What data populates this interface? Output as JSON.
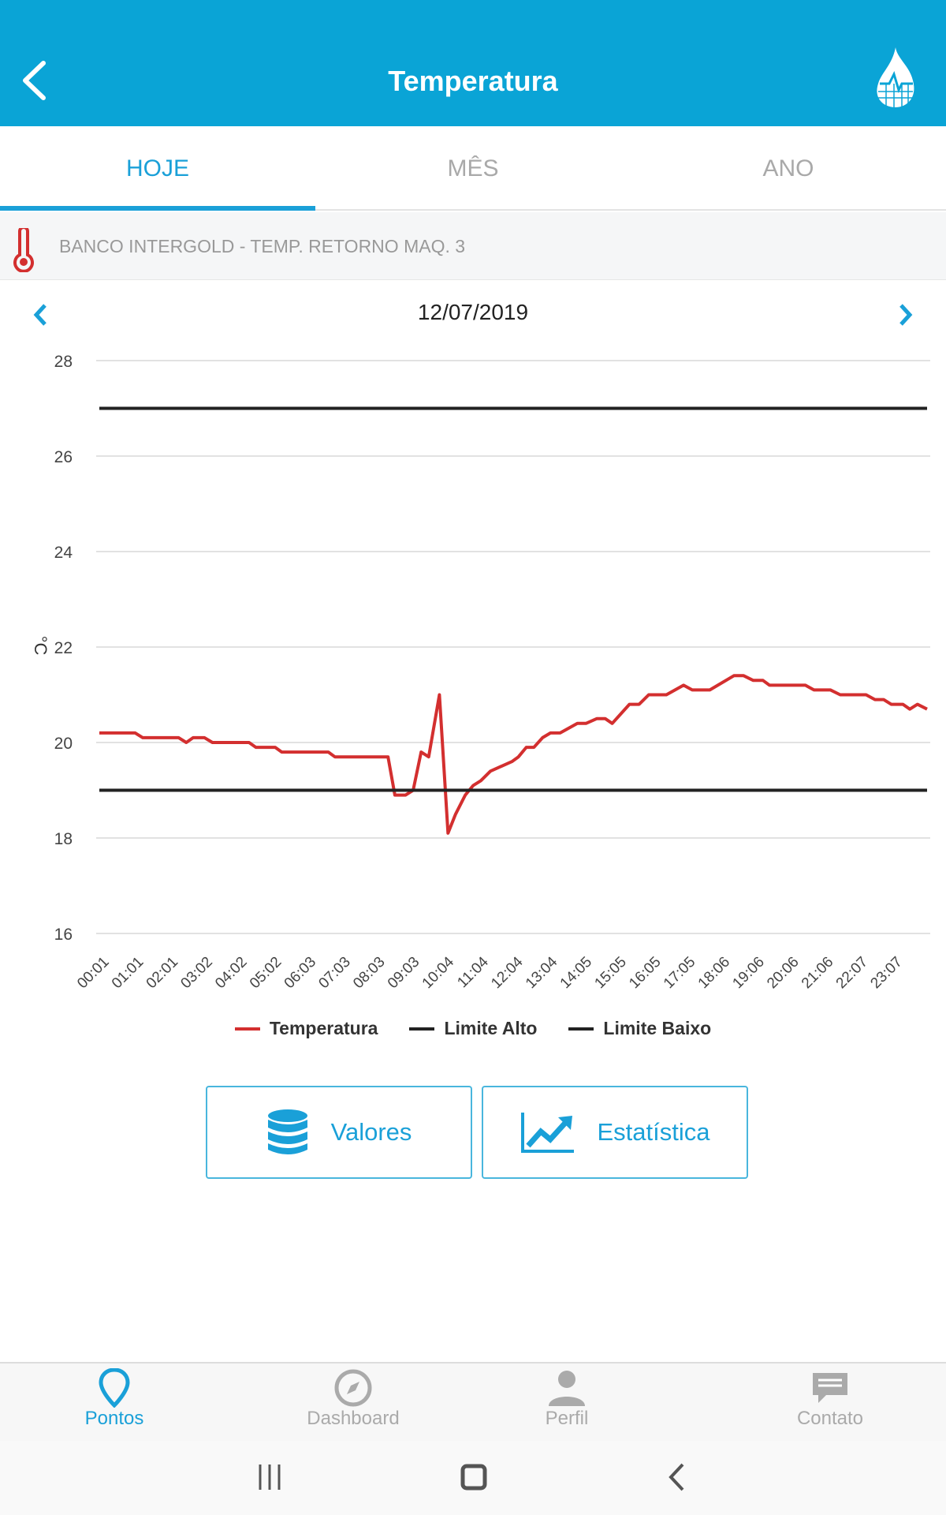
{
  "header": {
    "title": "Temperatura"
  },
  "tabs": [
    "HOJE",
    "MÊS",
    "ANO"
  ],
  "sensor": {
    "name": "BANCO INTERGOLD - TEMP. RETORNO MAQ. 3"
  },
  "date": "12/07/2019",
  "colors": {
    "primary": "#0aa4d6",
    "accent": "#1aa0d8",
    "temperature": "#d32f2f",
    "limit": "#222222"
  },
  "chart_data": {
    "type": "line",
    "ylabel": "°C",
    "ylim": [
      16,
      28
    ],
    "yticks": [
      "16",
      "18",
      "20",
      "22",
      "24",
      "26",
      "28"
    ],
    "xlim": [
      0,
      24
    ],
    "xticks": [
      "00:01",
      "01:01",
      "02:01",
      "03:02",
      "04:02",
      "05:02",
      "06:03",
      "07:03",
      "08:03",
      "09:03",
      "10:04",
      "11:04",
      "12:04",
      "13:04",
      "14:05",
      "15:05",
      "16:05",
      "17:05",
      "18:06",
      "19:06",
      "20:06",
      "21:06",
      "22:07",
      "23:07"
    ],
    "legend": [
      "Temperatura",
      "Limite Alto",
      "Limite Baixo"
    ],
    "legend_position": "bottom",
    "series": [
      {
        "name": "Temperatura",
        "x": [
          0,
          1.04,
          1.26,
          2.3,
          2.52,
          2.72,
          3.05,
          3.28,
          4.34,
          4.54,
          5.1,
          5.29,
          6.64,
          6.83,
          8.37,
          8.57,
          8.88,
          9.1,
          9.33,
          9.55,
          9.86,
          10.11,
          10.33,
          10.61,
          10.84,
          11.06,
          11.34,
          11.96,
          12.15,
          12.38,
          12.6,
          12.85,
          13.08,
          13.36,
          13.86,
          14.11,
          14.42,
          14.67,
          14.87,
          15.37,
          15.65,
          15.93,
          16.44,
          16.94,
          17.19,
          17.7,
          18.4,
          18.68,
          18.96,
          19.24,
          19.43,
          20.47,
          20.72,
          21.2,
          21.48,
          22.23,
          22.49,
          22.74,
          22.96,
          23.3,
          23.5,
          23.72,
          24
        ],
        "y": [
          20.2,
          20.2,
          20.1,
          20.1,
          20.0,
          20.1,
          20.1,
          20.0,
          20.0,
          19.9,
          19.9,
          19.8,
          19.8,
          19.7,
          19.7,
          18.9,
          18.9,
          19.0,
          19.8,
          19.7,
          21.0,
          18.1,
          18.5,
          18.9,
          19.1,
          19.2,
          19.4,
          19.6,
          19.7,
          19.9,
          19.9,
          20.1,
          20.2,
          20.2,
          20.4,
          20.4,
          20.5,
          20.5,
          20.4,
          20.8,
          20.8,
          21.0,
          21.0,
          21.2,
          21.1,
          21.1,
          21.4,
          21.4,
          21.3,
          21.3,
          21.2,
          21.2,
          21.1,
          21.1,
          21.0,
          21.0,
          20.9,
          20.9,
          20.8,
          20.8,
          20.7,
          20.8,
          20.7
        ]
      },
      {
        "name": "Limite Alto",
        "value": 27
      },
      {
        "name": "Limite Baixo",
        "value": 19
      }
    ]
  },
  "buttons": {
    "values": "Valores",
    "stats": "Estatística"
  },
  "bottom_nav": [
    "Pontos",
    "Dashboard",
    "Perfil",
    "Contato"
  ]
}
